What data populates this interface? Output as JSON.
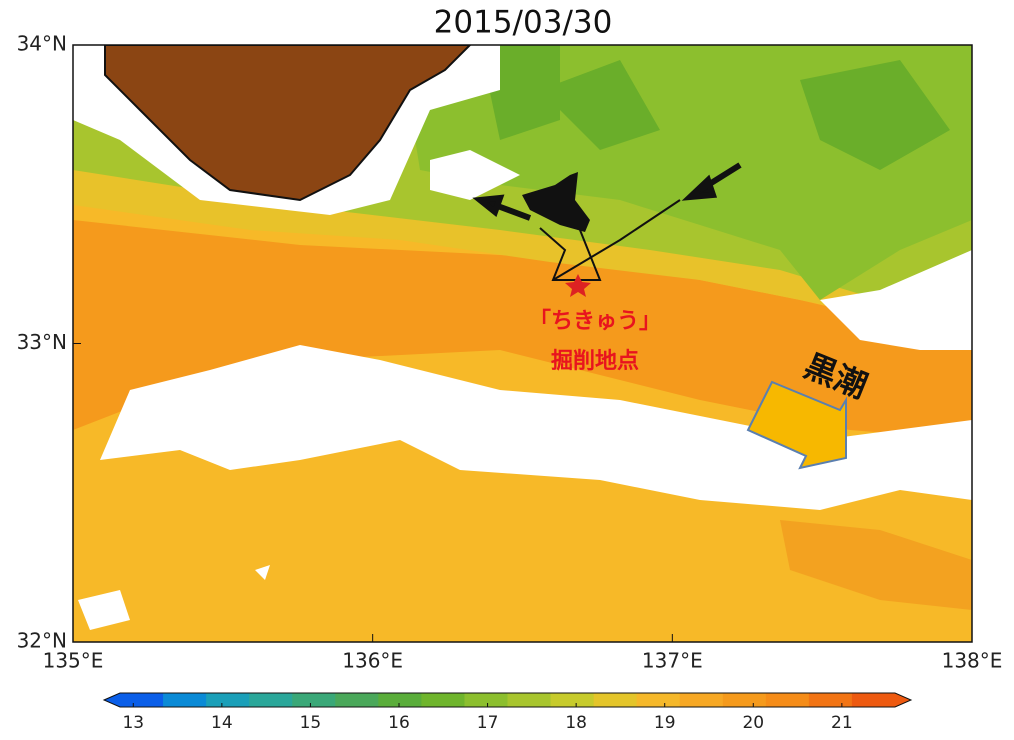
{
  "title": "2015/03/30",
  "map": {
    "lonlim": [
      135,
      138
    ],
    "latlim": [
      32,
      34
    ],
    "lon_ticks": [
      {
        "value": 135,
        "label": "135°E"
      },
      {
        "value": 136,
        "label": "136°E"
      },
      {
        "value": 137,
        "label": "137°E"
      },
      {
        "value": 138,
        "label": "138°E"
      }
    ],
    "lat_ticks": [
      {
        "value": 32,
        "label": "32°N"
      },
      {
        "value": 33,
        "label": "33°N"
      },
      {
        "value": 34,
        "label": "34°N"
      }
    ]
  },
  "annotations": {
    "site": [
      "「ちきゅう」",
      "掘削地点"
    ],
    "current": "黒潮"
  },
  "colorbar": {
    "lim": [
      12.85,
      21.6
    ],
    "ticks": [
      13,
      14,
      15,
      16,
      17,
      18,
      19,
      20,
      21
    ],
    "colors": [
      "#0a5ee8",
      "#0a8ad6",
      "#1a9fb8",
      "#2aa79a",
      "#3aa878",
      "#4aa85a",
      "#5aad3a",
      "#6fb52c",
      "#8cbf2e",
      "#a8c52e",
      "#c7cb2c",
      "#e4c52a",
      "#f5b82a",
      "#f7a824",
      "#f59a1c",
      "#f58c18",
      "#f27414",
      "#ee5a10"
    ]
  }
}
